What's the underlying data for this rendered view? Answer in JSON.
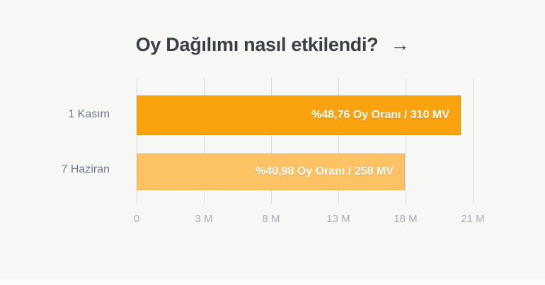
{
  "title": {
    "text": "Oy Dağılımı nasıl etkilendi?",
    "arrow": "→"
  },
  "chart_data": {
    "type": "bar",
    "orientation": "horizontal",
    "title": "Oy Dağılımı nasıl etkilendi?",
    "categories": [
      "1 Kasım",
      "7 Haziran"
    ],
    "bars": [
      {
        "category": "1 Kasım",
        "label": "%48,76 Oy Oranı / 310 MV",
        "vote_share_pct": 48.76,
        "seats_mv": 310,
        "length_pct": 96.2,
        "fill": "#fba30e",
        "border": "#e2950a"
      },
      {
        "category": "7 Haziran",
        "label": "%40,98 Oy Oranı / 258 MV",
        "vote_share_pct": 40.98,
        "seats_mv": 258,
        "length_pct": 79.6,
        "fill": "#fcc263",
        "border": "#ecb251"
      }
    ],
    "x_tick_labels": [
      "0",
      "3 M",
      "8 M",
      "13 M",
      "18 M",
      "21 M"
    ],
    "grid": true,
    "legend": "none",
    "colors": {
      "background": "#f7f7f6",
      "title_text": "#3b4046",
      "grid_line": "#d8dade",
      "category_label": "#6f7a89",
      "tick_label": "#a8acb3",
      "bar_text": "#ffffff"
    }
  }
}
